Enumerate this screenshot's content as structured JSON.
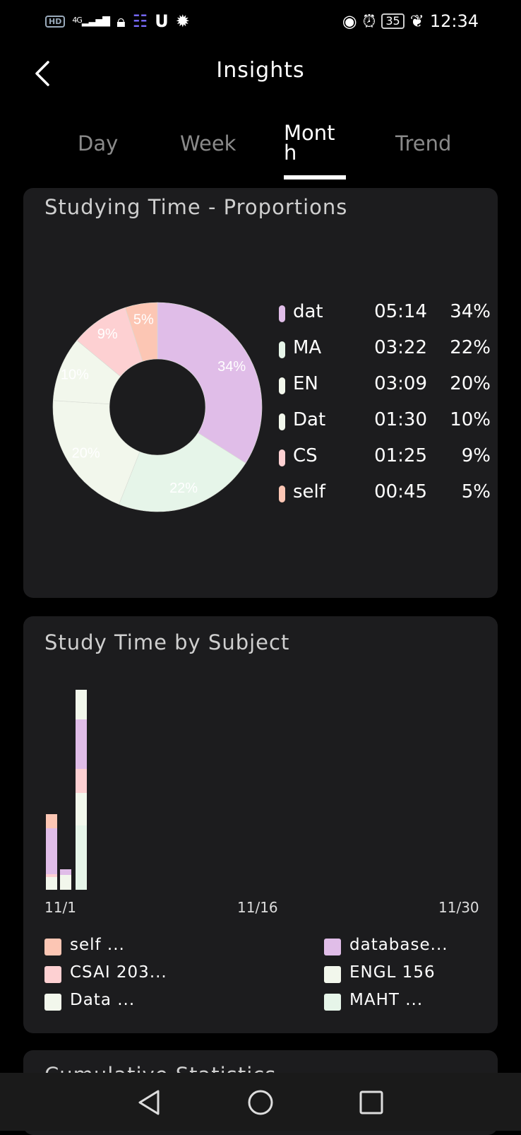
{
  "status_bar": {
    "hd": "HD",
    "network": "4G",
    "time": "12:34",
    "battery": "35"
  },
  "header": {
    "title": "Insights"
  },
  "tabs": [
    {
      "label": "Day"
    },
    {
      "label": "Week"
    },
    {
      "label": "Mont h"
    },
    {
      "label": "Trend"
    }
  ],
  "proportions_card": {
    "title": "Studying Time - Proportions",
    "chart_data": {
      "type": "pie",
      "slices": [
        {
          "label": "dat",
          "time": "05:14",
          "percent": "34%",
          "value": 34,
          "color": "#e0bde8"
        },
        {
          "label": "MA",
          "time": "03:22",
          "percent": "22%",
          "value": 22,
          "color": "#e6f5e9"
        },
        {
          "label": "EN",
          "time": "03:09",
          "percent": "20%",
          "value": 20,
          "color": "#f2f7ec"
        },
        {
          "label": "Dat",
          "time": "01:30",
          "percent": "10%",
          "value": 10,
          "color": "#f2f7ec"
        },
        {
          "label": "CS",
          "time": "01:25",
          "percent": "9%",
          "value": 9,
          "color": "#fdd0d2"
        },
        {
          "label": "self",
          "time": "00:45",
          "percent": "5%",
          "value": 5,
          "color": "#fcc6b4"
        }
      ]
    }
  },
  "subject_card": {
    "title": "Study Time by Subject",
    "chart_data": {
      "type": "bar",
      "x_tick_labels": [
        "11/1",
        "11/16",
        "11/30"
      ],
      "legend": [
        {
          "label": "self ...",
          "color": "#fcc6b4"
        },
        {
          "label": "database...",
          "color": "#e0bde8"
        },
        {
          "label": "CSAI 203...",
          "color": "#fdd0d2"
        },
        {
          "label": "ENGL 156",
          "color": "#f2f7ec"
        },
        {
          "label": "Data ...",
          "color": "#f2f7ec"
        },
        {
          "label": "MAHT ...",
          "color": "#e6f5e9"
        }
      ]
    }
  },
  "next_card": {
    "title": "Cumulative Statistics"
  }
}
